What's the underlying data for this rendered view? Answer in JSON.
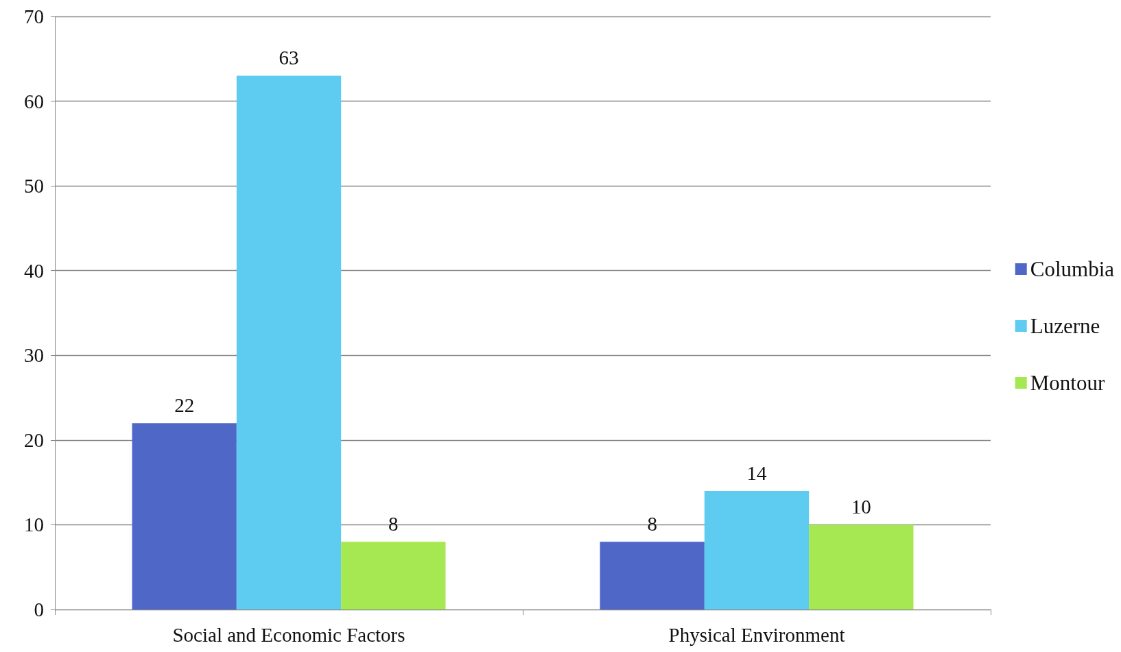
{
  "chart_data": {
    "type": "bar",
    "categories": [
      "Social and Economic Factors",
      "Physical Environment"
    ],
    "series": [
      {
        "name": "Columbia",
        "color": "#4f67c7",
        "values": [
          22,
          8
        ]
      },
      {
        "name": "Luzerne",
        "color": "#5ecbf1",
        "values": [
          63,
          14
        ]
      },
      {
        "name": "Montour",
        "color": "#a6e851",
        "values": [
          8,
          10
        ]
      }
    ],
    "ylim": [
      0,
      70
    ],
    "yticks": [
      0,
      10,
      20,
      30,
      40,
      50,
      60,
      70
    ],
    "grid": "y",
    "legend": "right",
    "data_labels": true
  }
}
